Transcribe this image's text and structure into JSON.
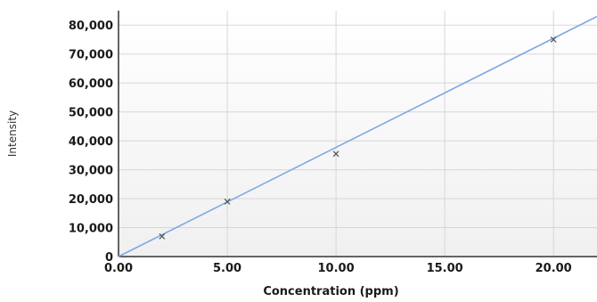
{
  "chart_data": {
    "type": "scatter",
    "title": "",
    "xlabel": "Concentration (ppm)",
    "ylabel": "Intensity",
    "xlim": [
      0,
      22
    ],
    "ylim": [
      0,
      85000
    ],
    "x_ticks": [
      0,
      5,
      10,
      15,
      20
    ],
    "x_tick_labels": [
      "0.00",
      "5.00",
      "10.00",
      "15.00",
      "20.00"
    ],
    "y_ticks": [
      0,
      10000,
      20000,
      30000,
      40000,
      50000,
      60000,
      70000,
      80000
    ],
    "y_tick_labels": [
      "0",
      "10,000",
      "20,000",
      "30,000",
      "40,000",
      "50,000",
      "60,000",
      "70,000",
      "80,000"
    ],
    "grid": true,
    "points": [
      {
        "x": 2,
        "y": 7000
      },
      {
        "x": 5,
        "y": 19000
      },
      {
        "x": 10,
        "y": 35500
      },
      {
        "x": 20,
        "y": 75000
      }
    ],
    "fit_line": {
      "x": [
        0,
        22
      ],
      "y": [
        0,
        83000
      ]
    },
    "colors": {
      "line": "#7fa8e6",
      "marker": "#555555",
      "grid": "#d7d7d7",
      "plot_bg_top": "#ffffff",
      "plot_bg_bottom": "#f0f0f0"
    }
  }
}
